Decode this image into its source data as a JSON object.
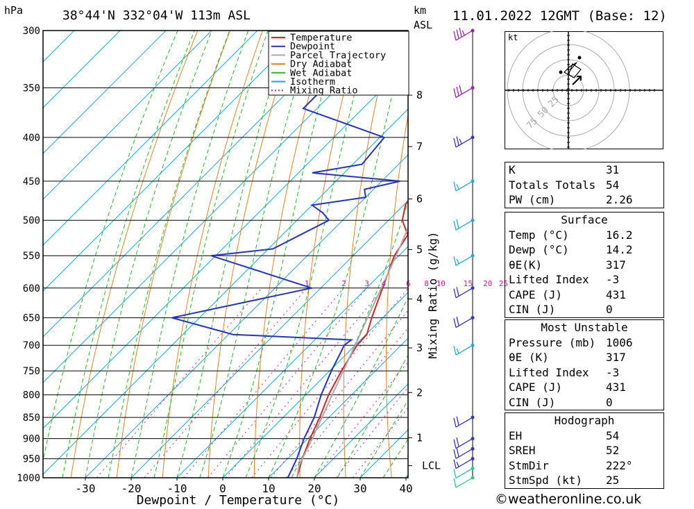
{
  "header": {
    "pressure_unit": "hPa",
    "location": "38°44'N  332°04'W  113m  ASL",
    "km_label": "km",
    "asl_label": "ASL",
    "datetime": "11.01.2022  12GMT  (Base: 12)"
  },
  "chart_data": {
    "type": "line",
    "xlabel": "Dewpoint / Temperature (°C)",
    "ylabel": "hPa",
    "right_axis_label": "Mixing Ratio (g/kg)",
    "pressure_levels": [
      300,
      350,
      400,
      450,
      500,
      550,
      600,
      650,
      700,
      750,
      800,
      850,
      900,
      950,
      1000
    ],
    "x_ticks": [
      -30,
      -20,
      -10,
      0,
      10,
      20,
      30,
      40
    ],
    "xlim": [
      -40,
      40
    ],
    "ylim": [
      1000,
      300
    ],
    "km_ticks": [
      {
        "km": "8",
        "p": 357
      },
      {
        "km": "7",
        "p": 410
      },
      {
        "km": "6",
        "p": 472
      },
      {
        "km": "5",
        "p": 541
      },
      {
        "km": "4",
        "p": 618
      },
      {
        "km": "3",
        "p": 705
      },
      {
        "km": "2",
        "p": 795
      },
      {
        "km": "1",
        "p": 898
      }
    ],
    "lcl": {
      "label": "LCL",
      "p": 968
    },
    "mixing_ratio_labels": [
      "1",
      "2",
      "3",
      "4",
      "6",
      "8",
      "10",
      "15",
      "20",
      "25"
    ],
    "legend": [
      "Temperature",
      "Dewpoint",
      "Parcel Trajectory",
      "Dry Adiabat",
      "Wet Adiabat",
      "Isotherm",
      "Mixing Ratio"
    ],
    "series": [
      {
        "name": "Temperature",
        "color": "#dd2222",
        "points": [
          [
            1000,
            16.2
          ],
          [
            950,
            13.2
          ],
          [
            900,
            10.5
          ],
          [
            850,
            8.0
          ],
          [
            800,
            5.0
          ],
          [
            750,
            2.6
          ],
          [
            700,
            0.4
          ],
          [
            680,
            0.2
          ],
          [
            650,
            -2.4
          ],
          [
            600,
            -6.5
          ],
          [
            550,
            -11.0
          ],
          [
            520,
            -12.6
          ],
          [
            500,
            -17.0
          ],
          [
            480,
            -19.6
          ],
          [
            460,
            -21.0
          ],
          [
            450,
            -22.0
          ],
          [
            430,
            -24.6
          ],
          [
            400,
            -28.6
          ],
          [
            380,
            -31.6
          ],
          [
            350,
            -37.0
          ],
          [
            300,
            -46.0
          ]
        ]
      },
      {
        "name": "Dewpoint",
        "color": "#2233cc",
        "points": [
          [
            1000,
            14.2
          ],
          [
            950,
            12.0
          ],
          [
            900,
            9.2
          ],
          [
            850,
            6.8
          ],
          [
            800,
            3.4
          ],
          [
            750,
            0.4
          ],
          [
            710,
            -1.8
          ],
          [
            700,
            -2.4
          ],
          [
            690,
            -2.0
          ],
          [
            680,
            -29.0
          ],
          [
            650,
            -46.0
          ],
          [
            600,
            -22.0
          ],
          [
            550,
            -51.0
          ],
          [
            540,
            -39.0
          ],
          [
            500,
            -33.0
          ],
          [
            490,
            -36.0
          ],
          [
            480,
            -40.0
          ],
          [
            470,
            -30.0
          ],
          [
            460,
            -32.0
          ],
          [
            450,
            -26.0
          ],
          [
            440,
            -47.0
          ],
          [
            430,
            -38.0
          ],
          [
            400,
            -39.0
          ],
          [
            370,
            -63.0
          ],
          [
            355,
            -63.0
          ],
          [
            350,
            -42.0
          ],
          [
            300,
            -51.0
          ]
        ]
      },
      {
        "name": "Parcel Trajectory",
        "color": "#aaaaaa",
        "points": [
          [
            1000,
            16.2
          ],
          [
            968,
            14.0
          ],
          [
            900,
            11.0
          ],
          [
            850,
            8.5
          ],
          [
            800,
            5.8
          ],
          [
            750,
            3.0
          ],
          [
            700,
            0.0
          ],
          [
            650,
            -3.3
          ],
          [
            600,
            -6.8
          ],
          [
            550,
            -10.6
          ],
          [
            500,
            -15.0
          ],
          [
            450,
            -20.2
          ],
          [
            400,
            -26.4
          ],
          [
            350,
            -34.0
          ],
          [
            300,
            -43.5
          ]
        ]
      }
    ],
    "wind_barbs": [
      {
        "p": 1000,
        "speed_kt": 10,
        "color": "#22cc88"
      },
      {
        "p": 975,
        "speed_kt": 10,
        "color": "#22cc88"
      },
      {
        "p": 950,
        "speed_kt": 15,
        "color": "#3333cc"
      },
      {
        "p": 925,
        "speed_kt": 20,
        "color": "#3333cc"
      },
      {
        "p": 900,
        "speed_kt": 20,
        "color": "#3333cc"
      },
      {
        "p": 850,
        "speed_kt": 20,
        "color": "#3333cc"
      },
      {
        "p": 700,
        "speed_kt": 15,
        "color": "#22aacc"
      },
      {
        "p": 650,
        "speed_kt": 20,
        "color": "#3333cc"
      },
      {
        "p": 600,
        "speed_kt": 20,
        "color": "#3333cc"
      },
      {
        "p": 550,
        "speed_kt": 15,
        "color": "#22aacc"
      },
      {
        "p": 500,
        "speed_kt": 20,
        "color": "#22aacc"
      },
      {
        "p": 450,
        "speed_kt": 15,
        "color": "#22aacc"
      },
      {
        "p": 400,
        "speed_kt": 25,
        "color": "#3333cc"
      },
      {
        "p": 350,
        "speed_kt": 30,
        "color": "#9922aa"
      },
      {
        "p": 300,
        "speed_kt": 35,
        "color": "#9922aa"
      }
    ]
  },
  "hodograph": {
    "unit": "kt",
    "rings": [
      "25",
      "50",
      "75"
    ]
  },
  "indices": {
    "general": [
      {
        "label": "K",
        "value": "31"
      },
      {
        "label": "Totals Totals",
        "value": "54"
      },
      {
        "label": "PW (cm)",
        "value": "2.26"
      }
    ],
    "surface_title": "Surface",
    "surface": [
      {
        "label": "Temp (°C)",
        "value": "16.2"
      },
      {
        "label": "Dewp (°C)",
        "value": "14.2"
      },
      {
        "label": "θE(K)",
        "value": "317"
      },
      {
        "label": "Lifted Index",
        "value": "-3"
      },
      {
        "label": "CAPE (J)",
        "value": "431"
      },
      {
        "label": "CIN (J)",
        "value": "0"
      }
    ],
    "mu_title": "Most Unstable",
    "mu": [
      {
        "label": "Pressure (mb)",
        "value": "1006"
      },
      {
        "label": "θE (K)",
        "value": "317"
      },
      {
        "label": "Lifted Index",
        "value": "-3"
      },
      {
        "label": "CAPE (J)",
        "value": "431"
      },
      {
        "label": "CIN (J)",
        "value": "0"
      }
    ],
    "hodo_title": "Hodograph",
    "hodo": [
      {
        "label": "EH",
        "value": "54"
      },
      {
        "label": "SREH",
        "value": "52"
      },
      {
        "label": "StmDir",
        "value": "222°"
      },
      {
        "label": "StmSpd (kt)",
        "value": "25"
      }
    ]
  },
  "credit": "©weatheronline.co.uk"
}
